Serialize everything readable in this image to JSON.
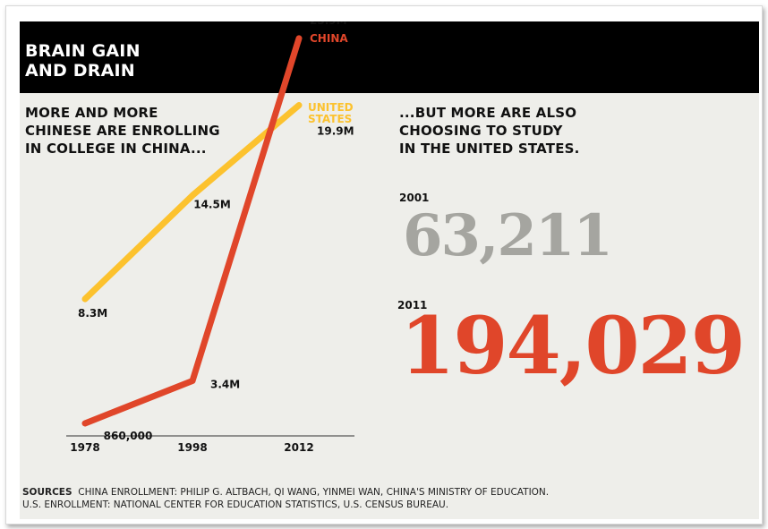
{
  "header": {
    "title": "BRAIN GAIN\nAND DRAIN"
  },
  "left_subtitle": "MORE AND MORE\nCHINESE ARE ENROLLING\nIN COLLEGE IN CHINA...",
  "right_subtitle": "...BUT MORE ARE ALSO\nCHOOSING TO STUDY\nIN THE UNITED STATES.",
  "colors": {
    "china": "#e0462a",
    "united_states": "#fcc22e",
    "gray_number": "#a5a5a0",
    "header_bg": "#000000",
    "panel_bg": "#eeeeea"
  },
  "chart_data": {
    "type": "line",
    "x": [
      "1978",
      "1998",
      "2012"
    ],
    "x_positions": [
      1978,
      1998,
      2012
    ],
    "grid": false,
    "series": [
      {
        "name": "CHINA",
        "color": "#e0462a",
        "points": [
          {
            "x": 1978,
            "y": 0.86,
            "label": "860,000"
          },
          {
            "x": 1998,
            "y": 3.4,
            "label": "3.4M"
          },
          {
            "x": 2012,
            "y": 23.9,
            "label": "23.9M"
          }
        ]
      },
      {
        "name": "UNITED\nSTATES",
        "color": "#fcc22e",
        "points": [
          {
            "x": 1978,
            "y": 8.3,
            "label": "8.3M"
          },
          {
            "x": 1998,
            "y": 14.5,
            "label": "14.5M"
          },
          {
            "x": 2012,
            "y": 19.9,
            "label": "19.9M"
          }
        ]
      }
    ],
    "ylim": [
      0,
      24
    ],
    "ylabel": "",
    "xlabel": ""
  },
  "enrollment_us": {
    "year_2001": "2001",
    "value_2001": "63,211",
    "year_2011": "2011",
    "value_2011": "194,029"
  },
  "sources": {
    "label": "SOURCES",
    "line1": "CHINA ENROLLMENT: PHILIP G. ALTBACH, QI WANG, YINMEI WAN, CHINA'S MINISTRY OF EDUCATION.",
    "line2": "U.S. ENROLLMENT: NATIONAL CENTER FOR EDUCATION STATISTICS, U.S. CENSUS BUREAU."
  }
}
